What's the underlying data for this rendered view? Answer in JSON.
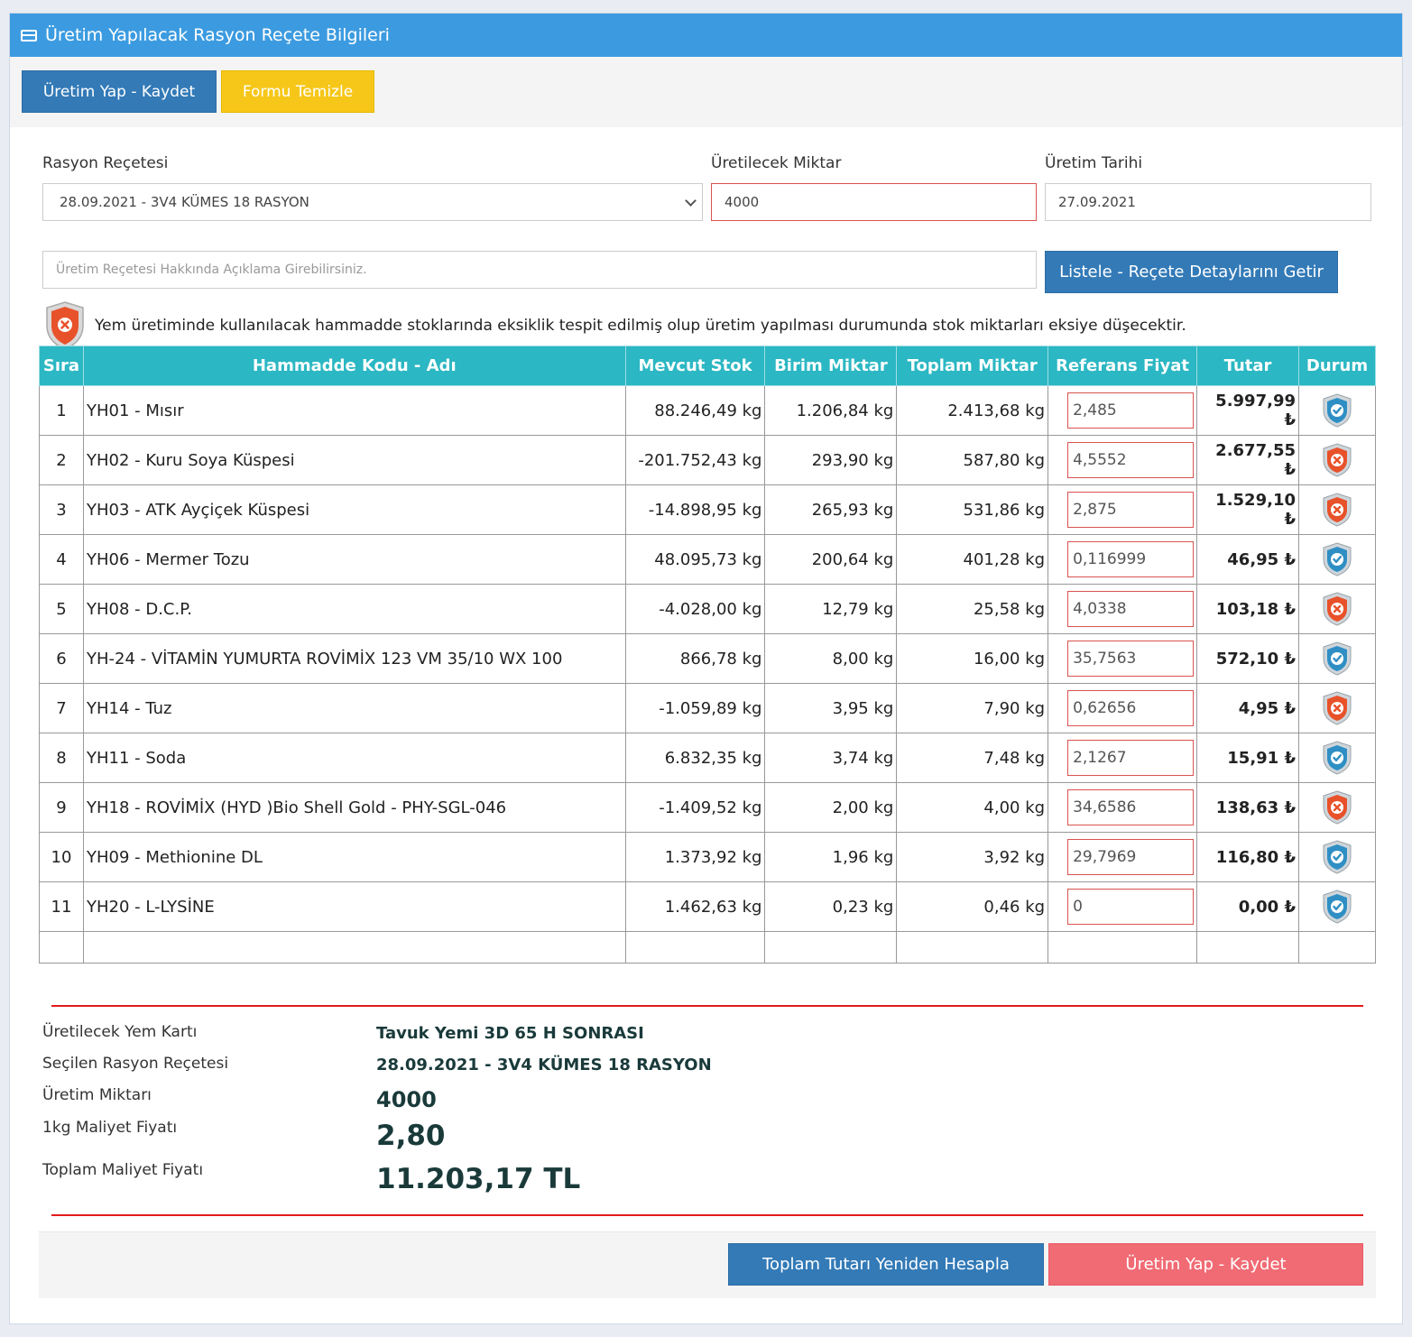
{
  "header": {
    "title": "Üretim Yapılacak Rasyon Reçete Bilgileri"
  },
  "toolbar": {
    "save_label": "Üretim Yap - Kaydet",
    "clear_label": "Formu Temizle"
  },
  "form": {
    "recipe_label": "Rasyon Reçetesi",
    "recipe_value": "28.09.2021 - 3V4 KÜMES 18 RASYON",
    "qty_label": "Üretilecek Miktar",
    "qty_value": "4000",
    "date_label": "Üretim Tarihi",
    "date_value": "27.09.2021",
    "note_placeholder": "Üretim Reçetesi Hakkında Açıklama Girebilirsiniz.",
    "list_button": "Listele - Reçete Detaylarını Getir"
  },
  "warning": {
    "text": "Yem üretiminde kullanılacak hammadde stoklarında eksiklik tespit edilmiş olup üretim yapılması durumunda stok miktarları eksiye düşecektir."
  },
  "table": {
    "headers": [
      "Sıra",
      "Hammadde Kodu - Adı",
      "Mevcut Stok",
      "Birim Miktar",
      "Toplam Miktar",
      "Referans Fiyat",
      "Tutar",
      "Durum"
    ],
    "rows": [
      {
        "no": "1",
        "name": "YH01 - Mısır",
        "stock": "88.246,49 kg",
        "unit": "1.206,84 kg",
        "total": "2.413,68 kg",
        "price": "2,485",
        "amount": "5.997,99 ₺",
        "status": "ok"
      },
      {
        "no": "2",
        "name": "YH02 - Kuru Soya Küspesi",
        "stock": "-201.752,43 kg",
        "unit": "293,90 kg",
        "total": "587,80 kg",
        "price": "4,5552",
        "amount": "2.677,55 ₺",
        "status": "error"
      },
      {
        "no": "3",
        "name": "YH03 - ATK Ayçiçek Küspesi",
        "stock": "-14.898,95 kg",
        "unit": "265,93 kg",
        "total": "531,86 kg",
        "price": "2,875",
        "amount": "1.529,10 ₺",
        "status": "error"
      },
      {
        "no": "4",
        "name": "YH06 - Mermer Tozu",
        "stock": "48.095,73 kg",
        "unit": "200,64 kg",
        "total": "401,28 kg",
        "price": "0,116999",
        "amount": "46,95 ₺",
        "status": "ok"
      },
      {
        "no": "5",
        "name": "YH08 - D.C.P.",
        "stock": "-4.028,00 kg",
        "unit": "12,79 kg",
        "total": "25,58 kg",
        "price": "4,0338",
        "amount": "103,18 ₺",
        "status": "error"
      },
      {
        "no": "6",
        "name": "YH-24 - VİTAMİN YUMURTA ROVİMİX 123 VM 35/10 WX 100",
        "stock": "866,78 kg",
        "unit": "8,00 kg",
        "total": "16,00 kg",
        "price": "35,7563",
        "amount": "572,10 ₺",
        "status": "ok"
      },
      {
        "no": "7",
        "name": "YH14 - Tuz",
        "stock": "-1.059,89 kg",
        "unit": "3,95 kg",
        "total": "7,90 kg",
        "price": "0,62656",
        "amount": "4,95 ₺",
        "status": "error"
      },
      {
        "no": "8",
        "name": "YH11 - Soda",
        "stock": "6.832,35 kg",
        "unit": "3,74 kg",
        "total": "7,48 kg",
        "price": "2,1267",
        "amount": "15,91 ₺",
        "status": "ok"
      },
      {
        "no": "9",
        "name": "YH18 - ROVİMİX (HYD )Bio Shell Gold - PHY-SGL-046",
        "stock": "-1.409,52 kg",
        "unit": "2,00 kg",
        "total": "4,00 kg",
        "price": "34,6586",
        "amount": "138,63 ₺",
        "status": "error"
      },
      {
        "no": "10",
        "name": "YH09 - Methionine DL",
        "stock": "1.373,92 kg",
        "unit": "1,96 kg",
        "total": "3,92 kg",
        "price": "29,7969",
        "amount": "116,80 ₺",
        "status": "ok"
      },
      {
        "no": "11",
        "name": "YH20 - L-LYSİNE",
        "stock": "1.462,63 kg",
        "unit": "0,23 kg",
        "total": "0,46 kg",
        "price": "0",
        "amount": "0,00 ₺",
        "status": "ok"
      }
    ]
  },
  "summary": {
    "feed_label": "Üretilecek Yem Kartı",
    "feed_value": "Tavuk Yemi 3D 65 H SONRASI",
    "recipe_label": "Seçilen Rasyon Reçetesi",
    "recipe_value": "28.09.2021 - 3V4 KÜMES 18 RASYON",
    "qty_label": "Üretim Miktarı",
    "qty_value": "4000",
    "unit_cost_label": "1kg Maliyet Fiyatı",
    "unit_cost_value": "2,80",
    "total_cost_label": "Toplam Maliyet Fiyatı",
    "total_cost_value": "11.203,17 TL"
  },
  "footer": {
    "recalc_label": "Toplam Tutarı Yeniden Hesapla",
    "save_label": "Üretim Yap - Kaydet"
  },
  "colors": {
    "header": "#3c9be0",
    "table_header": "#2bb7c3",
    "ok_shield": "#2f8fc4",
    "error_shield": "#e8522a",
    "divider": "#e31b1b"
  }
}
